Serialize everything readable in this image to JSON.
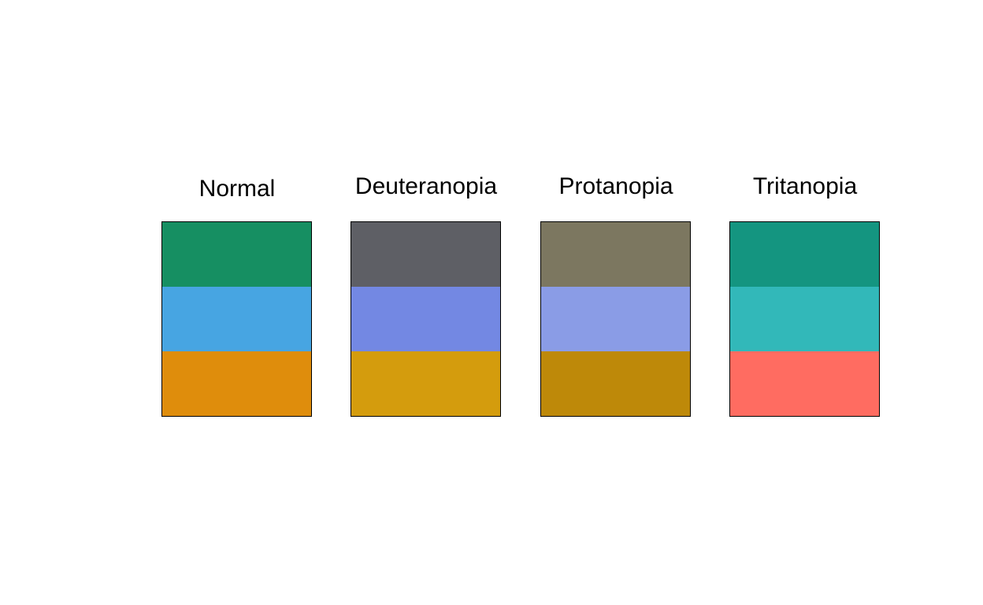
{
  "chart_data": {
    "type": "palette",
    "panels": [
      {
        "title": "Normal",
        "colors": [
          "#168F62",
          "#47A5E2",
          "#DF8D0C"
        ]
      },
      {
        "title": "Deuteranopia",
        "colors": [
          "#5E5F65",
          "#7388E3",
          "#D49C0D"
        ]
      },
      {
        "title": "Protanopia",
        "colors": [
          "#7C7760",
          "#8A9CE6",
          "#BE8909"
        ]
      },
      {
        "title": "Tritanopia",
        "colors": [
          "#149580",
          "#32B8B9",
          "#FF6C61"
        ]
      }
    ]
  }
}
